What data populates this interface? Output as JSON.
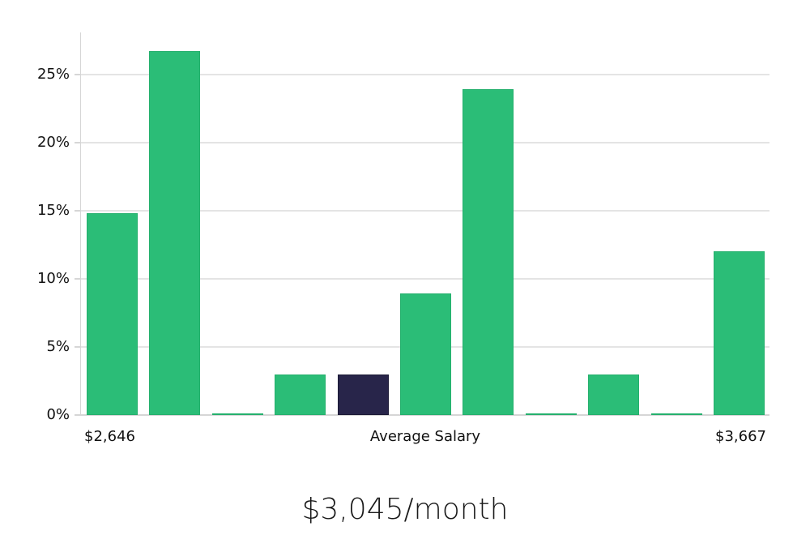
{
  "chart_data": {
    "type": "bar",
    "title": "",
    "xlabel": "Average Salary",
    "ylabel": "",
    "ylim": [
      0,
      28
    ],
    "yticks": [
      "0%",
      "5%",
      "10%",
      "15%",
      "20%",
      "25%"
    ],
    "ytick_values": [
      0,
      5,
      10,
      15,
      20,
      25
    ],
    "grid": true,
    "x_range_labels": {
      "min": "$2,646",
      "center": "Average Salary",
      "max": "$3,667"
    },
    "categories": [
      "bin1",
      "bin2",
      "bin3",
      "bin4",
      "bin5",
      "bin6",
      "bin7",
      "bin8",
      "bin9",
      "bin10",
      "bin11"
    ],
    "values": [
      14.8,
      26.7,
      0.1,
      3.0,
      3.0,
      8.9,
      23.9,
      0.1,
      3.0,
      0.1,
      12.0
    ],
    "highlight_index": 4,
    "colors": {
      "bar": "#2bbd77",
      "highlight": "#28254a",
      "grid": "#e4e4e4"
    }
  },
  "summary": {
    "value": "$3,045/month"
  }
}
